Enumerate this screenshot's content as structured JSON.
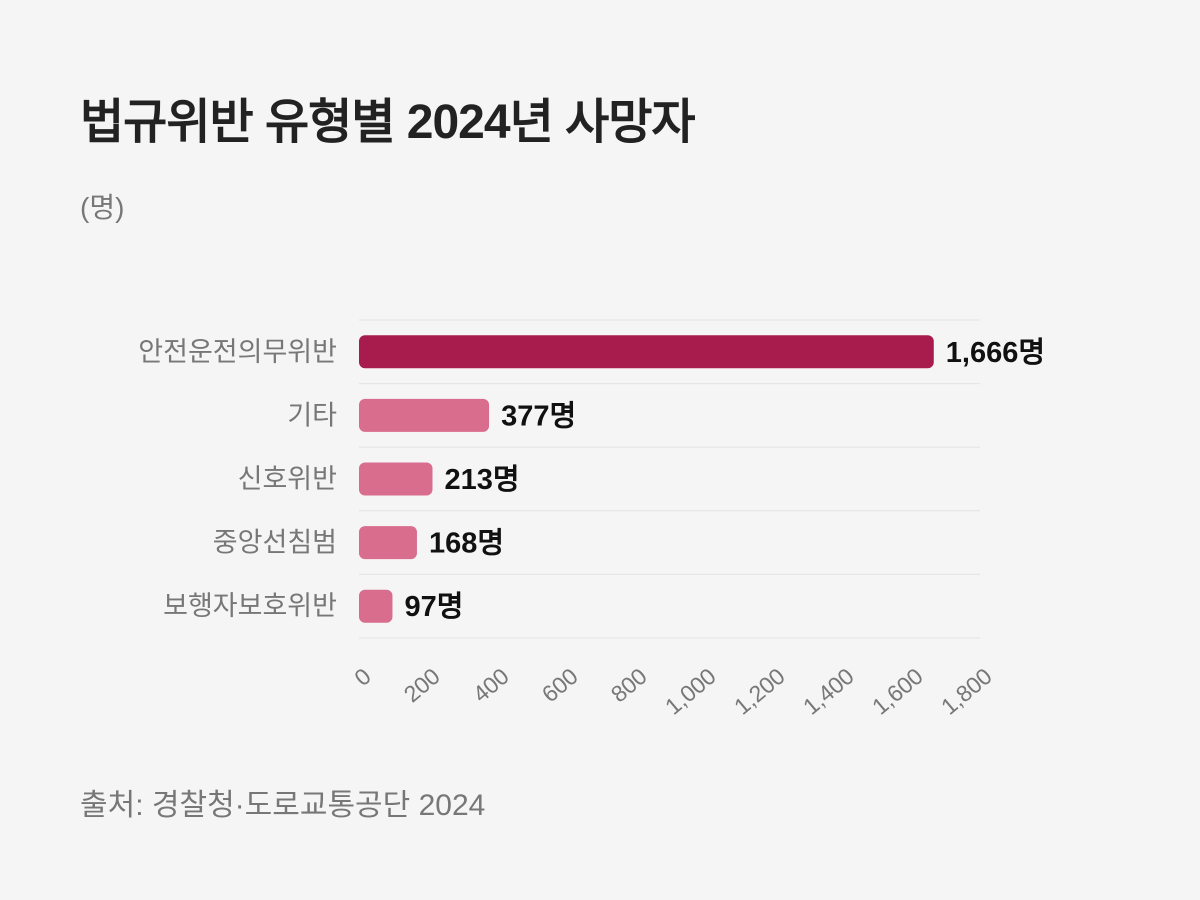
{
  "title": "법규위반 유형별 2024년 사망자",
  "unit": "(명)",
  "source": "출처: 경찰청·도로교통공단 2024",
  "colors": {
    "primary": "#a81b4d",
    "secondary": "#d86d8e",
    "grid": "#e4e4e4"
  },
  "chart_data": {
    "type": "bar",
    "orientation": "horizontal",
    "title": "법규위반 유형별 2024년 사망자",
    "ylabel": "(명)",
    "categories": [
      "안전운전의무위반",
      "기타",
      "신호위반",
      "중앙선침범",
      "보행자보호위반"
    ],
    "values": [
      1666,
      377,
      213,
      168,
      97
    ],
    "value_labels": [
      "1,666명",
      "377명",
      "213명",
      "168명",
      "97명"
    ],
    "xlim": [
      0,
      1800
    ],
    "ticks": [
      0,
      200,
      400,
      600,
      800,
      1000,
      1200,
      1400,
      1600,
      1800
    ],
    "tick_labels": [
      "0",
      "200",
      "400",
      "600",
      "800",
      "1,000",
      "1,200",
      "1,400",
      "1,600",
      "1,800"
    ],
    "grid": "horizontal row separators",
    "legend": "none"
  }
}
